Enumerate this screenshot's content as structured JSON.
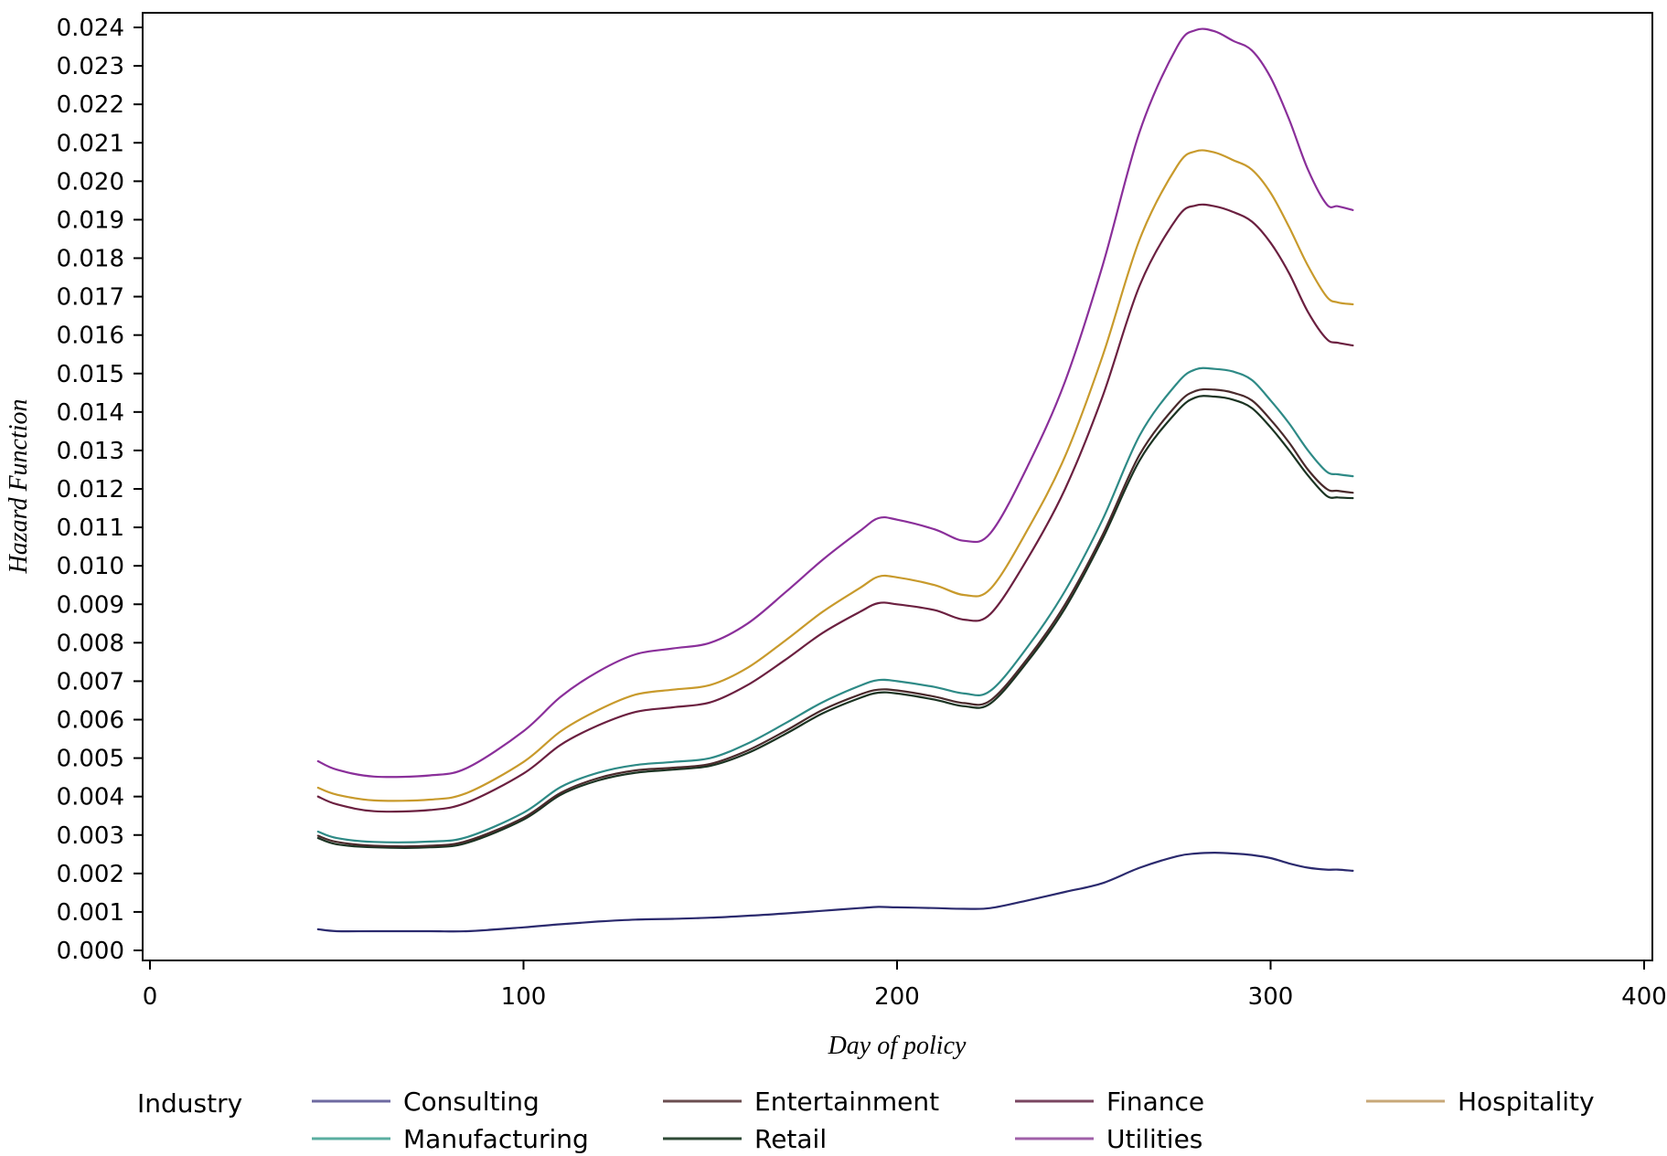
{
  "chart_data": {
    "type": "line",
    "title": "",
    "xlabel": "Day of policy",
    "ylabel": "Hazard Function",
    "xlim": [
      0,
      400
    ],
    "ylim": [
      0,
      0.024
    ],
    "x_ticks": [
      0,
      100,
      200,
      300,
      400
    ],
    "x_tick_labels": [
      "0",
      "100",
      "200",
      "300",
      "400"
    ],
    "y_ticks": [
      0,
      0.001,
      0.002,
      0.003,
      0.004,
      0.005,
      0.006,
      0.007,
      0.008,
      0.009,
      0.01,
      0.011,
      0.012,
      0.013,
      0.014,
      0.015,
      0.016,
      0.017,
      0.018,
      0.019,
      0.02,
      0.021,
      0.022,
      0.023,
      0.024
    ],
    "y_tick_labels": [
      "0.000",
      "0.001",
      "0.002",
      "0.003",
      "0.004",
      "0.005",
      "0.006",
      "0.007",
      "0.008",
      "0.009",
      "0.010",
      "0.011",
      "0.012",
      "0.013",
      "0.014",
      "0.015",
      "0.016",
      "0.017",
      "0.018",
      "0.019",
      "0.020",
      "0.021",
      "0.022",
      "0.023",
      "0.024"
    ],
    "grid": false,
    "legend": {
      "title": "Industry",
      "placement": "bottom"
    },
    "x": [
      45,
      50,
      60,
      75,
      85,
      100,
      110,
      120,
      130,
      140,
      150,
      160,
      170,
      180,
      190,
      195,
      200,
      210,
      218,
      225,
      235,
      245,
      255,
      265,
      275,
      280,
      285,
      290,
      295,
      300,
      305,
      310,
      315,
      318,
      322
    ],
    "series": [
      {
        "name": "Consulting",
        "color": "#2b2a6e",
        "values": [
          0.00055,
          0.0005,
          0.0005,
          0.0005,
          0.0005,
          0.0006,
          0.00068,
          0.00075,
          0.0008,
          0.00082,
          0.00085,
          0.0009,
          0.00096,
          0.00103,
          0.0011,
          0.00113,
          0.00112,
          0.0011,
          0.00108,
          0.0011,
          0.0013,
          0.00152,
          0.00175,
          0.00215,
          0.00245,
          0.00252,
          0.00254,
          0.00252,
          0.00248,
          0.0024,
          0.00226,
          0.00215,
          0.0021,
          0.0021,
          0.00207
        ]
      },
      {
        "name": "Entertainment",
        "color": "#4a2a2c",
        "values": [
          0.00298,
          0.00282,
          0.00272,
          0.00272,
          0.00285,
          0.00345,
          0.0041,
          0.00448,
          0.00468,
          0.00475,
          0.00485,
          0.0052,
          0.0057,
          0.00625,
          0.00665,
          0.00678,
          0.00676,
          0.0066,
          0.00643,
          0.0065,
          0.0076,
          0.009,
          0.0108,
          0.0129,
          0.0142,
          0.01455,
          0.01458,
          0.0145,
          0.0143,
          0.0138,
          0.0132,
          0.0125,
          0.012,
          0.01195,
          0.0119
        ]
      },
      {
        "name": "Finance",
        "color": "#6b2040",
        "values": [
          0.004,
          0.0038,
          0.00362,
          0.00365,
          0.00385,
          0.0046,
          0.00535,
          0.00585,
          0.0062,
          0.00632,
          0.00645,
          0.0069,
          0.00755,
          0.00825,
          0.0088,
          0.00903,
          0.009,
          0.00885,
          0.0086,
          0.00875,
          0.0102,
          0.012,
          0.0144,
          0.0173,
          0.01905,
          0.01937,
          0.01935,
          0.0192,
          0.01895,
          0.0184,
          0.0176,
          0.0166,
          0.0159,
          0.0158,
          0.01573
        ]
      },
      {
        "name": "Hospitality",
        "color": "#c89a2c",
        "values": [
          0.00423,
          0.00405,
          0.0039,
          0.00392,
          0.0041,
          0.0049,
          0.0057,
          0.00625,
          0.00665,
          0.00678,
          0.0069,
          0.00735,
          0.00805,
          0.0088,
          0.00942,
          0.00972,
          0.0097,
          0.0095,
          0.00924,
          0.0094,
          0.01095,
          0.01285,
          0.01545,
          0.0185,
          0.0204,
          0.02078,
          0.02075,
          0.02055,
          0.0203,
          0.0197,
          0.0188,
          0.0178,
          0.017,
          0.01685,
          0.0168
        ]
      },
      {
        "name": "Manufacturing",
        "color": "#2e8a86",
        "values": [
          0.00309,
          0.00292,
          0.00282,
          0.00283,
          0.00295,
          0.00358,
          0.00425,
          0.00462,
          0.00482,
          0.0049,
          0.005,
          0.00538,
          0.0059,
          0.00645,
          0.00688,
          0.00703,
          0.007,
          0.00685,
          0.00668,
          0.00675,
          0.0079,
          0.00935,
          0.0112,
          0.0134,
          0.01475,
          0.01511,
          0.01512,
          0.01505,
          0.01483,
          0.0143,
          0.0137,
          0.013,
          0.01245,
          0.01238,
          0.01233
        ]
      },
      {
        "name": "Retail",
        "color": "#1b3322",
        "values": [
          0.00292,
          0.00276,
          0.00268,
          0.00268,
          0.0028,
          0.0034,
          0.00405,
          0.00442,
          0.00462,
          0.0047,
          0.0048,
          0.00513,
          0.00562,
          0.00616,
          0.00656,
          0.0067,
          0.00668,
          0.00652,
          0.00635,
          0.00642,
          0.00752,
          0.0089,
          0.0107,
          0.01275,
          0.01402,
          0.01438,
          0.0144,
          0.01432,
          0.0141,
          0.0136,
          0.013,
          0.01235,
          0.01182,
          0.01178,
          0.01176
        ]
      },
      {
        "name": "Utilities",
        "color": "#8a2f9a",
        "values": [
          0.00492,
          0.0047,
          0.00452,
          0.00455,
          0.00475,
          0.0057,
          0.0066,
          0.00725,
          0.0077,
          0.00785,
          0.008,
          0.0085,
          0.0093,
          0.01015,
          0.0109,
          0.01124,
          0.0112,
          0.01095,
          0.01065,
          0.01085,
          0.0126,
          0.0148,
          0.0178,
          0.0213,
          0.0235,
          0.02393,
          0.0239,
          0.02365,
          0.0234,
          0.0227,
          0.0216,
          0.0203,
          0.0194,
          0.01935,
          0.01925
        ]
      }
    ]
  },
  "legend_items": [
    {
      "label": "Consulting",
      "color": "#6e6aa0"
    },
    {
      "label": "Entertainment",
      "color": "#6b4e50"
    },
    {
      "label": "Finance",
      "color": "#7a4660"
    },
    {
      "label": "Hospitality",
      "color": "#c8a878"
    },
    {
      "label": "Manufacturing",
      "color": "#5aaea0"
    },
    {
      "label": "Retail",
      "color": "#2e4a36"
    },
    {
      "label": "Utilities",
      "color": "#a060a8"
    }
  ]
}
